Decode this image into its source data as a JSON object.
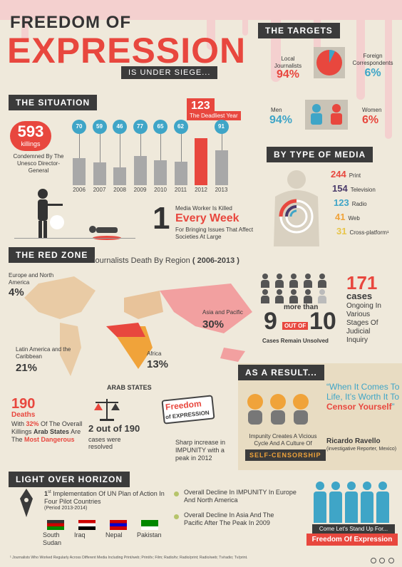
{
  "header": {
    "title_line1": "FREEDOM OF",
    "title_line2": "EXPRESSION",
    "subtitle": "IS UNDER SIEGE..."
  },
  "targets": {
    "heading": "THE TARGETS",
    "local_label": "Local Journalists",
    "local_value": "94%",
    "foreign_label": "Foreign Correspondents",
    "foreign_value": "6%",
    "men_label": "Men",
    "men_value": "94%",
    "women_label": "Women",
    "women_value": "6%"
  },
  "situation": {
    "heading": "THE SITUATION",
    "killings_number": "593",
    "killings_label": "killings",
    "condemned_text": "Condemned By The Unesco Director-General",
    "deadliest_number": "123",
    "deadliest_label": "The Deadliest Year",
    "every_week_pre": "Media Worker Is Killed",
    "every_week_big": "Every Week",
    "every_week_post": "For Bringing Issues That Affect Societies At Large",
    "every_week_num": "1"
  },
  "chart_data": {
    "type": "bar",
    "categories": [
      "2006",
      "2007",
      "2008",
      "2009",
      "2010",
      "2011",
      "2012",
      "2013"
    ],
    "values": [
      70,
      59,
      46,
      77,
      65,
      62,
      123,
      91
    ],
    "highlight": "2012",
    "colors": {
      "normal": "#a8a8a8",
      "highlight": "#e8473e",
      "label_bubble": "#3fa5c7"
    }
  },
  "media": {
    "heading": "BY TYPE OF MEDIA",
    "items": [
      {
        "value": "244",
        "label": "Print",
        "color": "#e8473e"
      },
      {
        "value": "154",
        "label": "Television",
        "color": "#4a3a6a"
      },
      {
        "value": "123",
        "label": "Radio",
        "color": "#3fa5c7"
      },
      {
        "value": "41",
        "label": "Web",
        "color": "#f0a33a"
      },
      {
        "value": "31",
        "label": "Cross-platform¹",
        "color": "#e8c54a"
      }
    ]
  },
  "redzone": {
    "heading": "THE RED ZONE",
    "map_title": "Journalists Death By Region",
    "map_years": "( 2006-2013 )",
    "europe_label": "Europe and North America",
    "europe_value": "4%",
    "asia_label": "Asia and Pacific",
    "asia_value": "30%",
    "latam_label": "Latin America and the Caribbean",
    "latam_value": "21%",
    "africa_label": "Africa",
    "africa_value": "13%",
    "arab_label": "ARAB STATES",
    "more_than": "more than",
    "nine": "9",
    "out_of": "OUT OF",
    "ten": "10",
    "unsolved": "Cases Remain Unsolved",
    "cases_number": "171",
    "cases_label": "cases",
    "cases_desc": "Ongoing In Various Stages Of Judicial Inquiry"
  },
  "arab": {
    "deaths_number": "190",
    "deaths_label": "Deaths",
    "desc_pre": "With",
    "desc_pct": "32%",
    "desc_mid": "Of The Overall Killings",
    "desc_bold": "Arab States",
    "desc_are": "Are The",
    "desc_red": "Most Dangerous",
    "resolved_big": "2 out of 190",
    "resolved_small": "cases were resolved",
    "sign_freedom": "Freedom",
    "sign_of": "of EXPRESSION",
    "impunity_text": "Sharp increase in IMPUNITY with a peak in 2012"
  },
  "result": {
    "heading": "AS A RESULT...",
    "quote": "“When It Comes To Life, It’s Worth It To Censor Yourself”",
    "quote_pre": "“When It Comes To Life, It’s Worth It To",
    "quote_red": "Censor Yourself",
    "quote_end": "”",
    "author": "Ricardo Ravello",
    "author_role": "(investigative Reporter, Mexico)",
    "impunity_desc": "Impunity Creates A Vicious Cycle And A Culture Of",
    "self_censorship": "SELF-CENSORSHIP"
  },
  "horizon": {
    "heading": "LIGHT OVER HORIZON",
    "first": "1",
    "first_sup": "st",
    "implementation": "Implementation Of UN Plan of Action In Four Pilot Countries",
    "period": "(Period 2013-2014)",
    "countries": [
      "South Sudan",
      "Iraq",
      "Nepal",
      "Pakistan"
    ],
    "decline1": "Overall Decline In IMPUNITY In Europe And North America",
    "decline2": "Overall Decline In Asia And The Pacific After The Peak In 2009",
    "stand_up": "Come Let's Stand Up For...",
    "freedom_banner": "Freedom Of Expression"
  },
  "footnote": "¹ Journalists Who Worked Regularly Across Different Media Including Print/web; Print/tv; Film; Radio/tv; Radio/print; Radio/web; Tv/radio; Tv/print."
}
